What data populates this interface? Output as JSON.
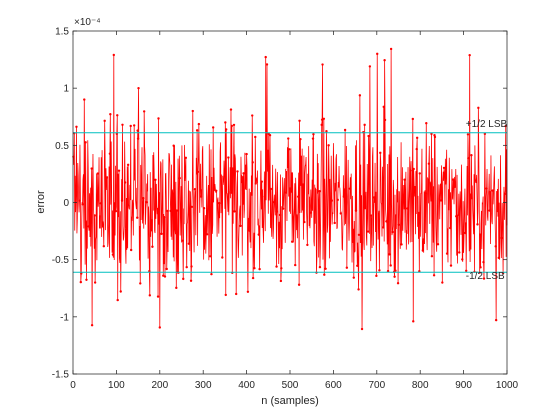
{
  "chart_data": {
    "type": "line",
    "title": "",
    "xlabel": "n (samples)",
    "ylabel": "error",
    "xlim": [
      0,
      1000
    ],
    "ylim": [
      -1.5,
      1.5
    ],
    "y_scale_exponent": "×10⁻⁴",
    "x_ticks": [
      0,
      100,
      200,
      300,
      400,
      500,
      600,
      700,
      800,
      900,
      1000
    ],
    "x_tick_labels": [
      "0",
      "100",
      "200",
      "300",
      "400",
      "500",
      "600",
      "700",
      "800",
      "900",
      "1000"
    ],
    "y_ticks": [
      -1.5,
      -1,
      -0.5,
      0,
      0.5,
      1,
      1.5
    ],
    "y_tick_labels": [
      "-1.5",
      "-1",
      "-0.5",
      "0",
      "0.5",
      "1",
      "1.5"
    ],
    "grid": false,
    "series": [
      {
        "color": "#ff0000",
        "marker": "point",
        "n_samples": 1000,
        "approx_range": [
          -1.12,
          1.38
        ],
        "x_sample_step": 25,
        "y_sample_values": [
          0.4,
          0.9,
          -0.7,
          0.3,
          0.6,
          -0.4,
          1.0,
          -0.6,
          0.2,
          -0.3,
          0.5,
          0.8,
          -0.5,
          0.1,
          0.7,
          -0.8,
          0.3,
          -0.2,
          0.6,
          -0.4,
          -0.1,
          0.4,
          0.2,
          -0.5,
          0.3,
          -0.2,
          0.5,
          -0.3,
          1.3,
          -0.6,
          0.1,
          0.4,
          -0.3,
          0.6,
          -0.7,
          0.2,
          -0.3,
          0.5,
          -0.2,
          0.1,
          -0.2
        ]
      },
      {
        "color": "#00bfbf",
        "y": [
          0.61,
          0.61
        ],
        "x": [
          0,
          1000
        ]
      },
      {
        "color": "#00bfbf",
        "y": [
          -0.61,
          -0.61
        ],
        "x": [
          0,
          1000
        ]
      }
    ],
    "annotations": [
      {
        "text": "+1/2 LSB",
        "x": 905,
        "y": 0.66
      },
      {
        "text": "-1/2 LSB",
        "x": 905,
        "y": -0.67
      }
    ],
    "colors": {
      "axes": "#262626",
      "trace": "#ff0000",
      "bounds": "#00bfbf",
      "background": "#ffffff"
    }
  }
}
